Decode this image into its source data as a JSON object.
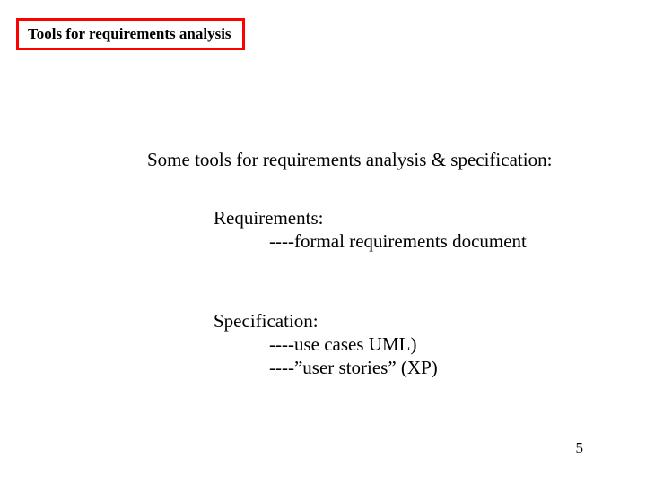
{
  "title": "Tools for requirements analysis",
  "heading": "Some tools for requirements analysis & specification:",
  "requirements": {
    "label": "Requirements:",
    "item": "----formal requirements document"
  },
  "specification": {
    "label": "Specification:",
    "item1": "----use cases UML)",
    "item2": "----”user stories” (XP)"
  },
  "page_number": "5",
  "colors": {
    "border": "#ff0000",
    "text": "#000000",
    "background": "#ffffff"
  },
  "typography": {
    "font_family": "Times New Roman",
    "title_fontsize": 17,
    "body_fontsize": 21,
    "page_num_fontsize": 17
  }
}
